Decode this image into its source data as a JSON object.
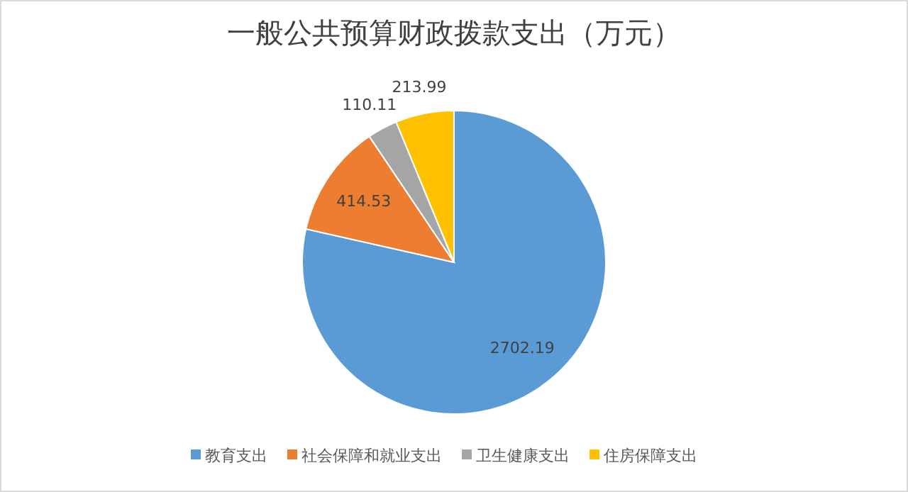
{
  "chart_data": {
    "type": "pie",
    "title": "一般公共预算财政拨款支出（万元）",
    "categories": [
      "教育支出",
      "社会保障和就业支出",
      "卫生健康支出",
      "住房保障支出"
    ],
    "values": [
      2702.19,
      414.53,
      110.11,
      213.99
    ],
    "colors": [
      "#5b9bd5",
      "#ed7d31",
      "#a5a5a5",
      "#ffc000"
    ],
    "data_labels": true,
    "legend": "bottom"
  }
}
